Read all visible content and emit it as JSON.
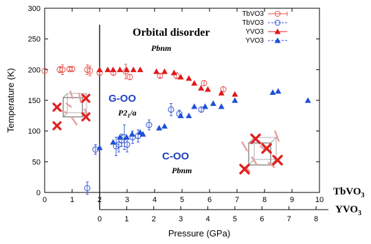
{
  "chart_data": {
    "type": "scatter",
    "ylabel": "Temperature (K)",
    "xlabel": "Pressure (GPa)",
    "ylim": [
      0,
      300
    ],
    "yticks": [
      0,
      50,
      100,
      150,
      200,
      250,
      300
    ],
    "xlim_top": [
      0,
      10
    ],
    "xticks_top": [
      0,
      1,
      2,
      3,
      4,
      5,
      6,
      7,
      8,
      9,
      10
    ],
    "xlim_bottom": [
      -2,
      8
    ],
    "xticks_bottom": [
      0,
      1,
      2,
      3,
      4,
      5,
      6,
      7,
      8
    ],
    "grid": false,
    "legend_position": "top-right",
    "axis_compound_top": "TbVO",
    "axis_compound_bottom": "YVO",
    "axis_compound_subscript": "3",
    "annotations": {
      "orbital_disorder": "Orbital disorder",
      "pbnm_top": "Pbnm",
      "g_oo": "G-OO",
      "p21a_main": "P2",
      "p21a_sub": "1",
      "p21a_tail": "/a",
      "c_oo": "C-OO",
      "pbnm_bottom": "Pbnm"
    },
    "series": [
      {
        "name": "TbVO3",
        "axis": "top",
        "marker": "circle-open",
        "color": "#e8504a",
        "x": [
          0.0,
          0.55,
          0.65,
          0.9,
          1.0,
          1.55,
          1.65,
          2.0,
          2.5,
          2.95,
          3.1,
          4.2,
          4.8,
          5.8,
          6.5
        ],
        "y": [
          198,
          200,
          200,
          201,
          201,
          200,
          198,
          195,
          195,
          197,
          188,
          190,
          190,
          178,
          168
        ],
        "yerr": [
          0,
          5,
          8,
          3,
          3,
          8,
          8,
          4,
          4,
          12,
          4,
          3,
          5,
          4,
          4
        ]
      },
      {
        "name": "TbVO3",
        "axis": "top",
        "marker": "circle-open",
        "color": "#2a4fd0",
        "x": [
          1.55,
          1.85,
          2.6,
          2.7,
          2.8,
          2.9,
          3.0,
          3.2,
          3.4,
          3.8,
          4.6,
          4.9,
          5.7
        ],
        "y": [
          7,
          70,
          75,
          78,
          85,
          90,
          78,
          90,
          92,
          110,
          135,
          128,
          135
        ],
        "yerr": [
          10,
          8,
          15,
          12,
          10,
          20,
          12,
          10,
          10,
          8,
          10,
          6,
          4
        ]
      },
      {
        "name": "YVO3",
        "axis": "bottom",
        "marker": "triangle-filled",
        "color": "#e01818",
        "x": [
          0.0,
          0.3,
          0.5,
          0.75,
          1.0,
          1.25,
          1.5,
          2.1,
          2.4,
          2.75,
          3.0,
          3.3,
          3.5,
          3.75,
          4.0,
          4.5,
          5.0
        ],
        "y": [
          200,
          200,
          200,
          200,
          200,
          200,
          200,
          197,
          197,
          195,
          188,
          186,
          178,
          170,
          168,
          162,
          160
        ],
        "yerr": [
          0,
          0,
          0,
          0,
          0,
          0,
          0,
          0,
          0,
          0,
          0,
          0,
          0,
          0,
          0,
          0,
          0
        ]
      },
      {
        "name": "YVO3",
        "axis": "bottom",
        "marker": "triangle-filled",
        "color": "#1f4fd8",
        "x": [
          0.0,
          0.5,
          0.75,
          1.0,
          1.2,
          1.5,
          1.6,
          2.2,
          2.4,
          3.0,
          3.3,
          3.5,
          3.9,
          4.2,
          4.5,
          5.0,
          6.4,
          6.6,
          7.7
        ],
        "y": [
          73,
          82,
          90,
          90,
          95,
          98,
          95,
          105,
          108,
          125,
          125,
          140,
          140,
          145,
          140,
          150,
          163,
          165,
          150
        ],
        "yerr": [
          0,
          0,
          0,
          0,
          0,
          0,
          0,
          0,
          0,
          0,
          0,
          0,
          0,
          0,
          0,
          0,
          0,
          0,
          0
        ]
      }
    ]
  }
}
